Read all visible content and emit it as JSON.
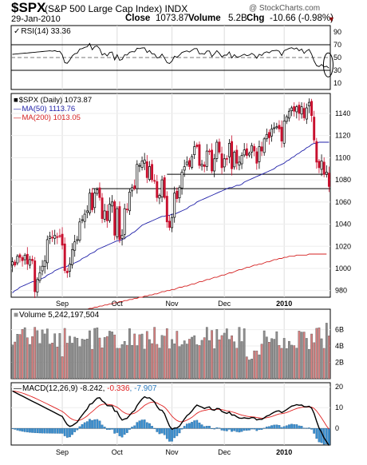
{
  "header": {
    "symbol": "$SPX",
    "name": "(S&P 500 Large Cap Index) INDX",
    "watermark": "@ StockCharts.com",
    "date": "29-Jan-2010",
    "close_label": "Close",
    "close_value": "1073.87",
    "volume_label": "Volume",
    "volume_value": "5.2B",
    "chg_label": "Chg",
    "chg_value": "-10.66 (-0.98%)",
    "chg_arrow": "▼"
  },
  "chart_data": [
    {
      "type": "line",
      "panel": "rsi",
      "legend": "RSI(14) 33.36",
      "ylim": [
        0,
        100
      ],
      "y_ticks": [
        10,
        30,
        50,
        70,
        90
      ],
      "overbought": 70,
      "oversold": 30,
      "last_value": 33.36
    },
    {
      "type": "candlestick",
      "panel": "price",
      "legend": [
        "$SPX (Daily) 1073.87",
        "MA(50) 1113.76",
        "MA(200) 1013.05"
      ],
      "series_names": [
        "$SPX (Daily)",
        "MA(50)",
        "MA(200)"
      ],
      "series_colors": {
        "price_up": "#000000",
        "price_down": "#c8102e",
        "ma50": "#1f1fa8",
        "ma200": "#d42020"
      },
      "ylim": [
        974,
        1158
      ],
      "y_ticks": [
        980,
        1000,
        1020,
        1040,
        1060,
        1080,
        1100,
        1120,
        1140
      ],
      "start_date": "2009-08-04",
      "end_date": "2010-01-29",
      "x_ticks": [
        "Sep",
        "Oct",
        "Nov",
        "Dec",
        "2010"
      ],
      "x_tick_dates": [
        "2009-09-01",
        "2009-10-01",
        "2009-11-02",
        "2009-12-01",
        "2010-01-04"
      ],
      "support_lines": [
        1085,
        1072
      ],
      "ma50_last": 1113.76,
      "ma200_last": 1013.05,
      "close_last": 1073.87,
      "closes": [
        1006,
        1003,
        1011,
        1010,
        1007,
        1012,
        1004,
        1008,
        1007,
        979,
        990,
        996,
        1002,
        1007,
        1026,
        1029,
        1028,
        1030,
        1028,
        1029,
        1021,
        998,
        996,
        1004,
        1017,
        1024,
        1026,
        1042,
        1044,
        1049,
        1052,
        1068,
        1053,
        1068,
        1071,
        1064,
        1045,
        1052,
        1043,
        1058,
        1060,
        1030,
        1054,
        1026,
        1030,
        1054,
        1053,
        1069,
        1073,
        1072,
        1094,
        1093,
        1097,
        1098,
        1082,
        1092,
        1080,
        1079,
        1064,
        1066,
        1080,
        1064,
        1042,
        1037,
        1046,
        1068,
        1063,
        1073,
        1087,
        1092,
        1096,
        1092,
        1101,
        1110,
        1110,
        1093,
        1094,
        1092,
        1106,
        1106,
        1088,
        1099,
        1114,
        1105,
        1091,
        1099,
        1099,
        1113,
        1090,
        1105,
        1095,
        1096,
        1102,
        1107,
        1102,
        1104,
        1111,
        1106,
        1095,
        1110,
        1106,
        1117,
        1121,
        1118,
        1126,
        1127,
        1128,
        1126,
        1115,
        1133,
        1137,
        1142,
        1145,
        1142,
        1146,
        1140,
        1146,
        1136,
        1145,
        1150,
        1138,
        1116,
        1096,
        1091,
        1097,
        1085,
        1087,
        1074
      ],
      "ma50": [
        978,
        980,
        981,
        983,
        984,
        985,
        986,
        987,
        988,
        988,
        989,
        990,
        991,
        992,
        994,
        995,
        996,
        998,
        999,
        1000,
        1001,
        1001,
        1002,
        1003,
        1004,
        1005,
        1006,
        1007,
        1009,
        1010,
        1011,
        1013,
        1014,
        1015,
        1017,
        1018,
        1019,
        1020,
        1021,
        1022,
        1023,
        1024,
        1025,
        1025,
        1026,
        1027,
        1029,
        1030,
        1032,
        1033,
        1035,
        1037,
        1039,
        1040,
        1041,
        1042,
        1043,
        1044,
        1045,
        1046,
        1047,
        1047,
        1048,
        1048,
        1049,
        1049,
        1050,
        1051,
        1052,
        1053,
        1054,
        1056,
        1057,
        1058,
        1060,
        1061,
        1062,
        1063,
        1064,
        1065,
        1066,
        1067,
        1068,
        1069,
        1070,
        1071,
        1072,
        1073,
        1073,
        1074,
        1075,
        1075,
        1076,
        1078,
        1079,
        1080,
        1081,
        1082,
        1083,
        1084,
        1085,
        1086,
        1087,
        1088,
        1089,
        1090,
        1092,
        1093,
        1094,
        1095,
        1097,
        1098,
        1100,
        1101,
        1103,
        1104,
        1106,
        1107,
        1109,
        1110,
        1112,
        1113,
        1113,
        1114,
        1114,
        1114,
        1114,
        1114
      ],
      "ma200": [
        948,
        949,
        949,
        950,
        950,
        951,
        951,
        952,
        952,
        953,
        953,
        954,
        954,
        955,
        955,
        956,
        956,
        957,
        957,
        958,
        958,
        959,
        959,
        960,
        960,
        961,
        961,
        962,
        962,
        963,
        963,
        964,
        964,
        965,
        965,
        966,
        966,
        967,
        967,
        968,
        968,
        969,
        969,
        970,
        970,
        971,
        971,
        972,
        972,
        973,
        973,
        974,
        974,
        975,
        975,
        976,
        976,
        977,
        977,
        978,
        979,
        979,
        980,
        980,
        981,
        981,
        982,
        983,
        983,
        984,
        984,
        985,
        986,
        986,
        987,
        988,
        988,
        989,
        990,
        990,
        991,
        992,
        992,
        993,
        994,
        994,
        995,
        996,
        996,
        997,
        998,
        999,
        999,
        1000,
        1001,
        1001,
        1002,
        1003,
        1003,
        1004,
        1004,
        1005,
        1006,
        1006,
        1007,
        1008,
        1008,
        1009,
        1009,
        1010,
        1010,
        1011,
        1011,
        1011,
        1012,
        1012,
        1012,
        1012,
        1012,
        1013,
        1013,
        1013,
        1013,
        1013,
        1013,
        1013,
        1013
      ]
    },
    {
      "type": "bar",
      "panel": "volume",
      "legend": "Volume 5,242,197,504",
      "y_tick_labels": [
        "2B",
        "4B",
        "6B"
      ],
      "y_tick_values": [
        2,
        4,
        6
      ],
      "unit": "B",
      "ylim": [
        0,
        8.5
      ],
      "last_value": 5.24
    },
    {
      "type": "line",
      "panel": "macd",
      "legend_prefix": "MACD(12,26,9)",
      "legend_values": [
        "-8.242",
        "-0.336",
        "-7.907"
      ],
      "series_names": [
        "MACD",
        "Signal",
        "Histogram"
      ],
      "series_colors": {
        "macd": "#000000",
        "signal": "#e02020",
        "hist": "#3a8fd0"
      },
      "ylim": [
        -8,
        22
      ],
      "y_ticks": [
        0,
        10,
        20
      ],
      "last_values": {
        "macd": -8.242,
        "signal": -0.336,
        "histogram": -7.907
      }
    }
  ]
}
